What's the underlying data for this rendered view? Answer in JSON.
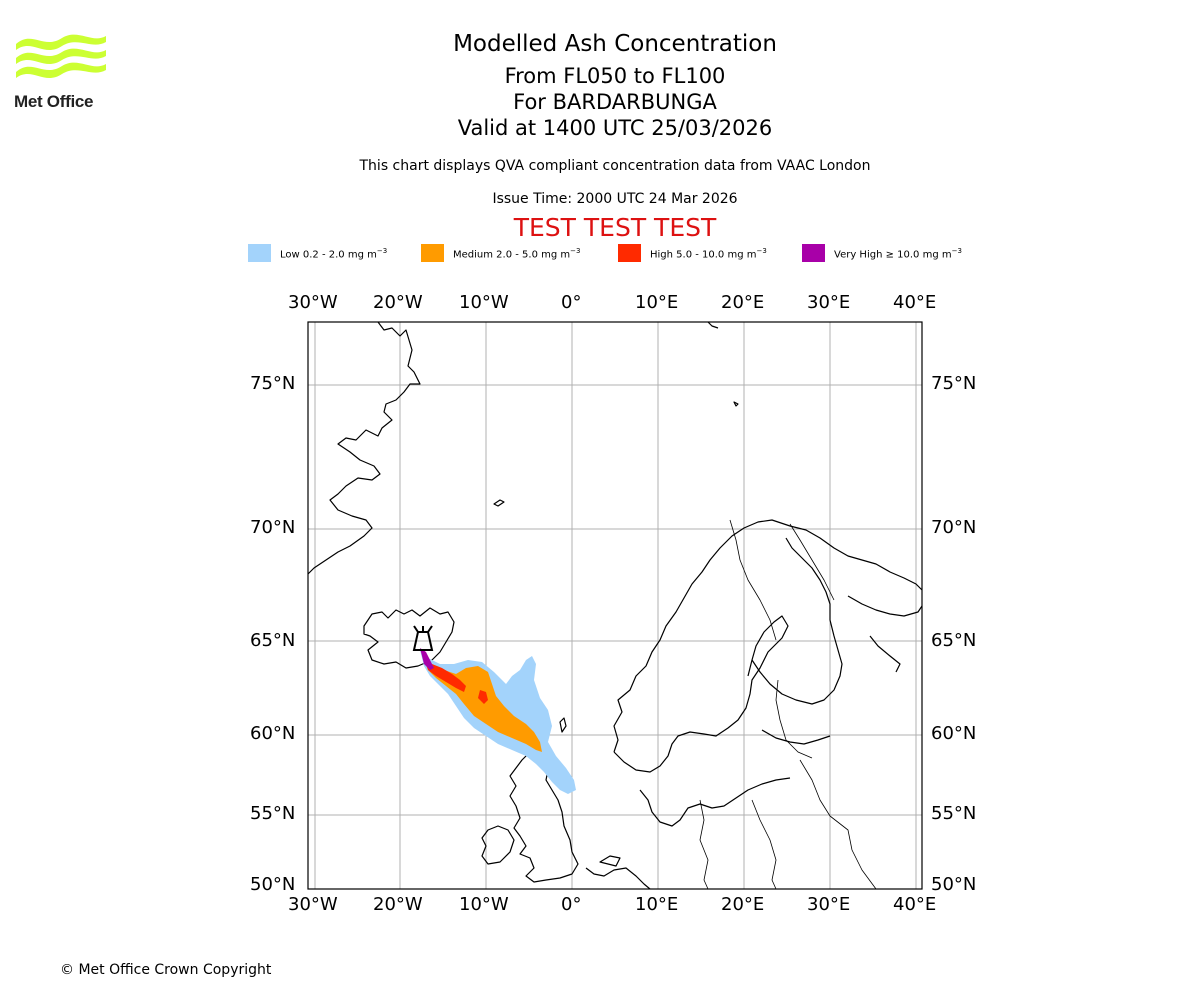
{
  "logo": {
    "name": "Met Office"
  },
  "titles": {
    "line1": "Modelled Ash Concentration",
    "line2": "From FL050 to FL100",
    "line3": "For BARDARBUNGA",
    "line4": "Valid at 1400 UTC 25/03/2026",
    "qva_note": "This chart displays QVA compliant concentration data from VAAC London",
    "issue_time": "Issue Time: 2000 UTC 24 Mar 2026",
    "test_banner": "TEST TEST TEST"
  },
  "legend": [
    {
      "label": "Low 0.2 - 2.0 mg m",
      "exp": "−3",
      "color": "#a3d3fb"
    },
    {
      "label": "Medium 2.0 - 5.0 mg m",
      "exp": "−3",
      "color": "#ff9b00"
    },
    {
      "label": "High 5.0 - 10.0 mg m",
      "exp": "−3",
      "color": "#ff2a00"
    },
    {
      "label": "Very High  ≥  10.0 mg m",
      "exp": "−3",
      "color": "#a800a8"
    }
  ],
  "axes": {
    "longitude_ticks": [
      "30°W",
      "20°W",
      "10°W",
      "0°",
      "10°E",
      "20°E",
      "30°E",
      "40°E"
    ],
    "latitude_ticks": [
      "75°N",
      "70°N",
      "65°N",
      "60°N",
      "55°N",
      "50°N"
    ]
  },
  "volcano": {
    "name": "BARDARBUNGA",
    "icon": "volcano-icon"
  },
  "copyright": "© Met Office Crown Copyright",
  "colors": {
    "test_banner": "#dd1111",
    "logo_green": "#ccff33",
    "grid": "#b0b0b0"
  }
}
